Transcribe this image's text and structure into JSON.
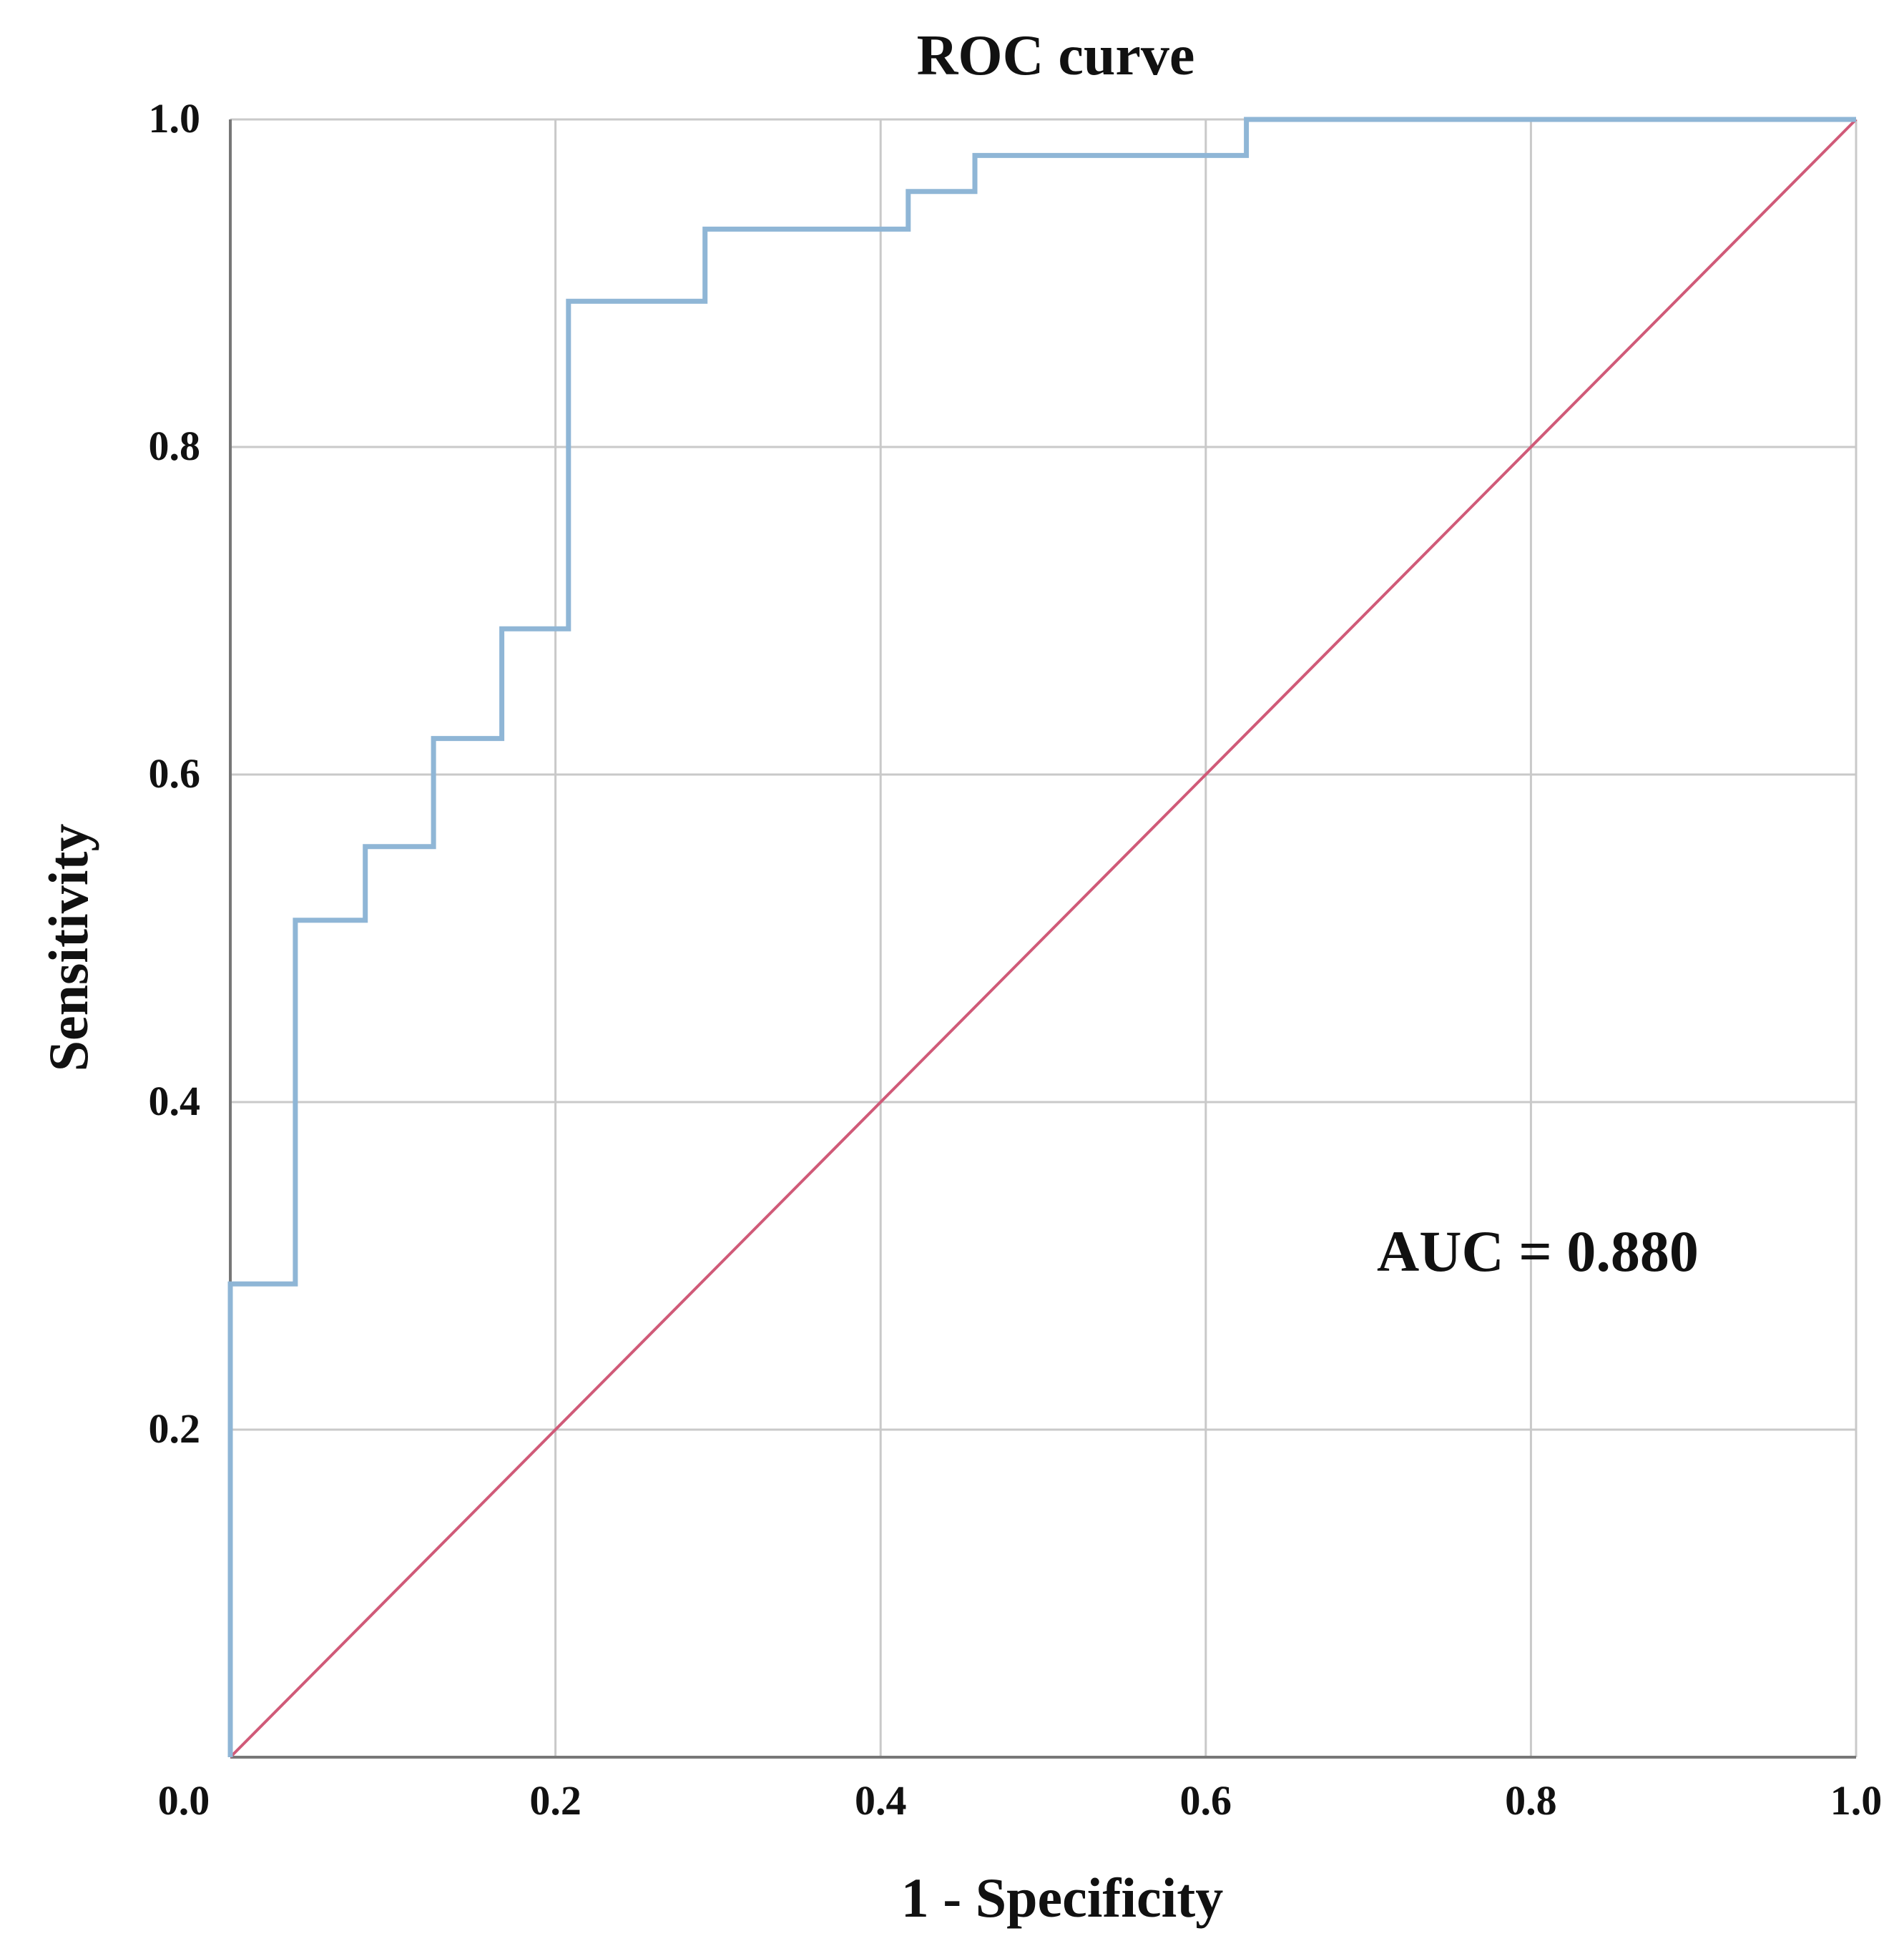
{
  "chart_data": {
    "type": "line",
    "title": "ROC curve",
    "xlabel": "1 - Specificity",
    "ylabel": "Sensitivity",
    "xlim": [
      0.0,
      1.0
    ],
    "ylim": [
      0.0,
      1.0
    ],
    "grid": true,
    "x_ticks": [
      "0.0",
      "0.2",
      "0.4",
      "0.6",
      "0.8",
      "1.0"
    ],
    "y_ticks": [
      "0.2",
      "0.4",
      "0.6",
      "0.8",
      "1.0"
    ],
    "annotation": "AUC = 0.880",
    "series": [
      {
        "name": "ROC",
        "color": "#8fb6d6",
        "step": true,
        "points": [
          [
            0.0,
            0.0
          ],
          [
            0.0,
            0.289
          ],
          [
            0.04,
            0.289
          ],
          [
            0.04,
            0.511
          ],
          [
            0.083,
            0.511
          ],
          [
            0.083,
            0.556
          ],
          [
            0.125,
            0.556
          ],
          [
            0.125,
            0.622
          ],
          [
            0.167,
            0.622
          ],
          [
            0.167,
            0.689
          ],
          [
            0.208,
            0.689
          ],
          [
            0.208,
            0.889
          ],
          [
            0.292,
            0.889
          ],
          [
            0.292,
            0.933
          ],
          [
            0.417,
            0.933
          ],
          [
            0.417,
            0.956
          ],
          [
            0.458,
            0.956
          ],
          [
            0.458,
            0.978
          ],
          [
            0.625,
            0.978
          ],
          [
            0.625,
            1.0
          ],
          [
            1.0,
            1.0
          ]
        ]
      },
      {
        "name": "Reference line",
        "color": "#d05a78",
        "step": false,
        "points": [
          [
            0.0,
            0.0
          ],
          [
            1.0,
            1.0
          ]
        ]
      }
    ]
  }
}
